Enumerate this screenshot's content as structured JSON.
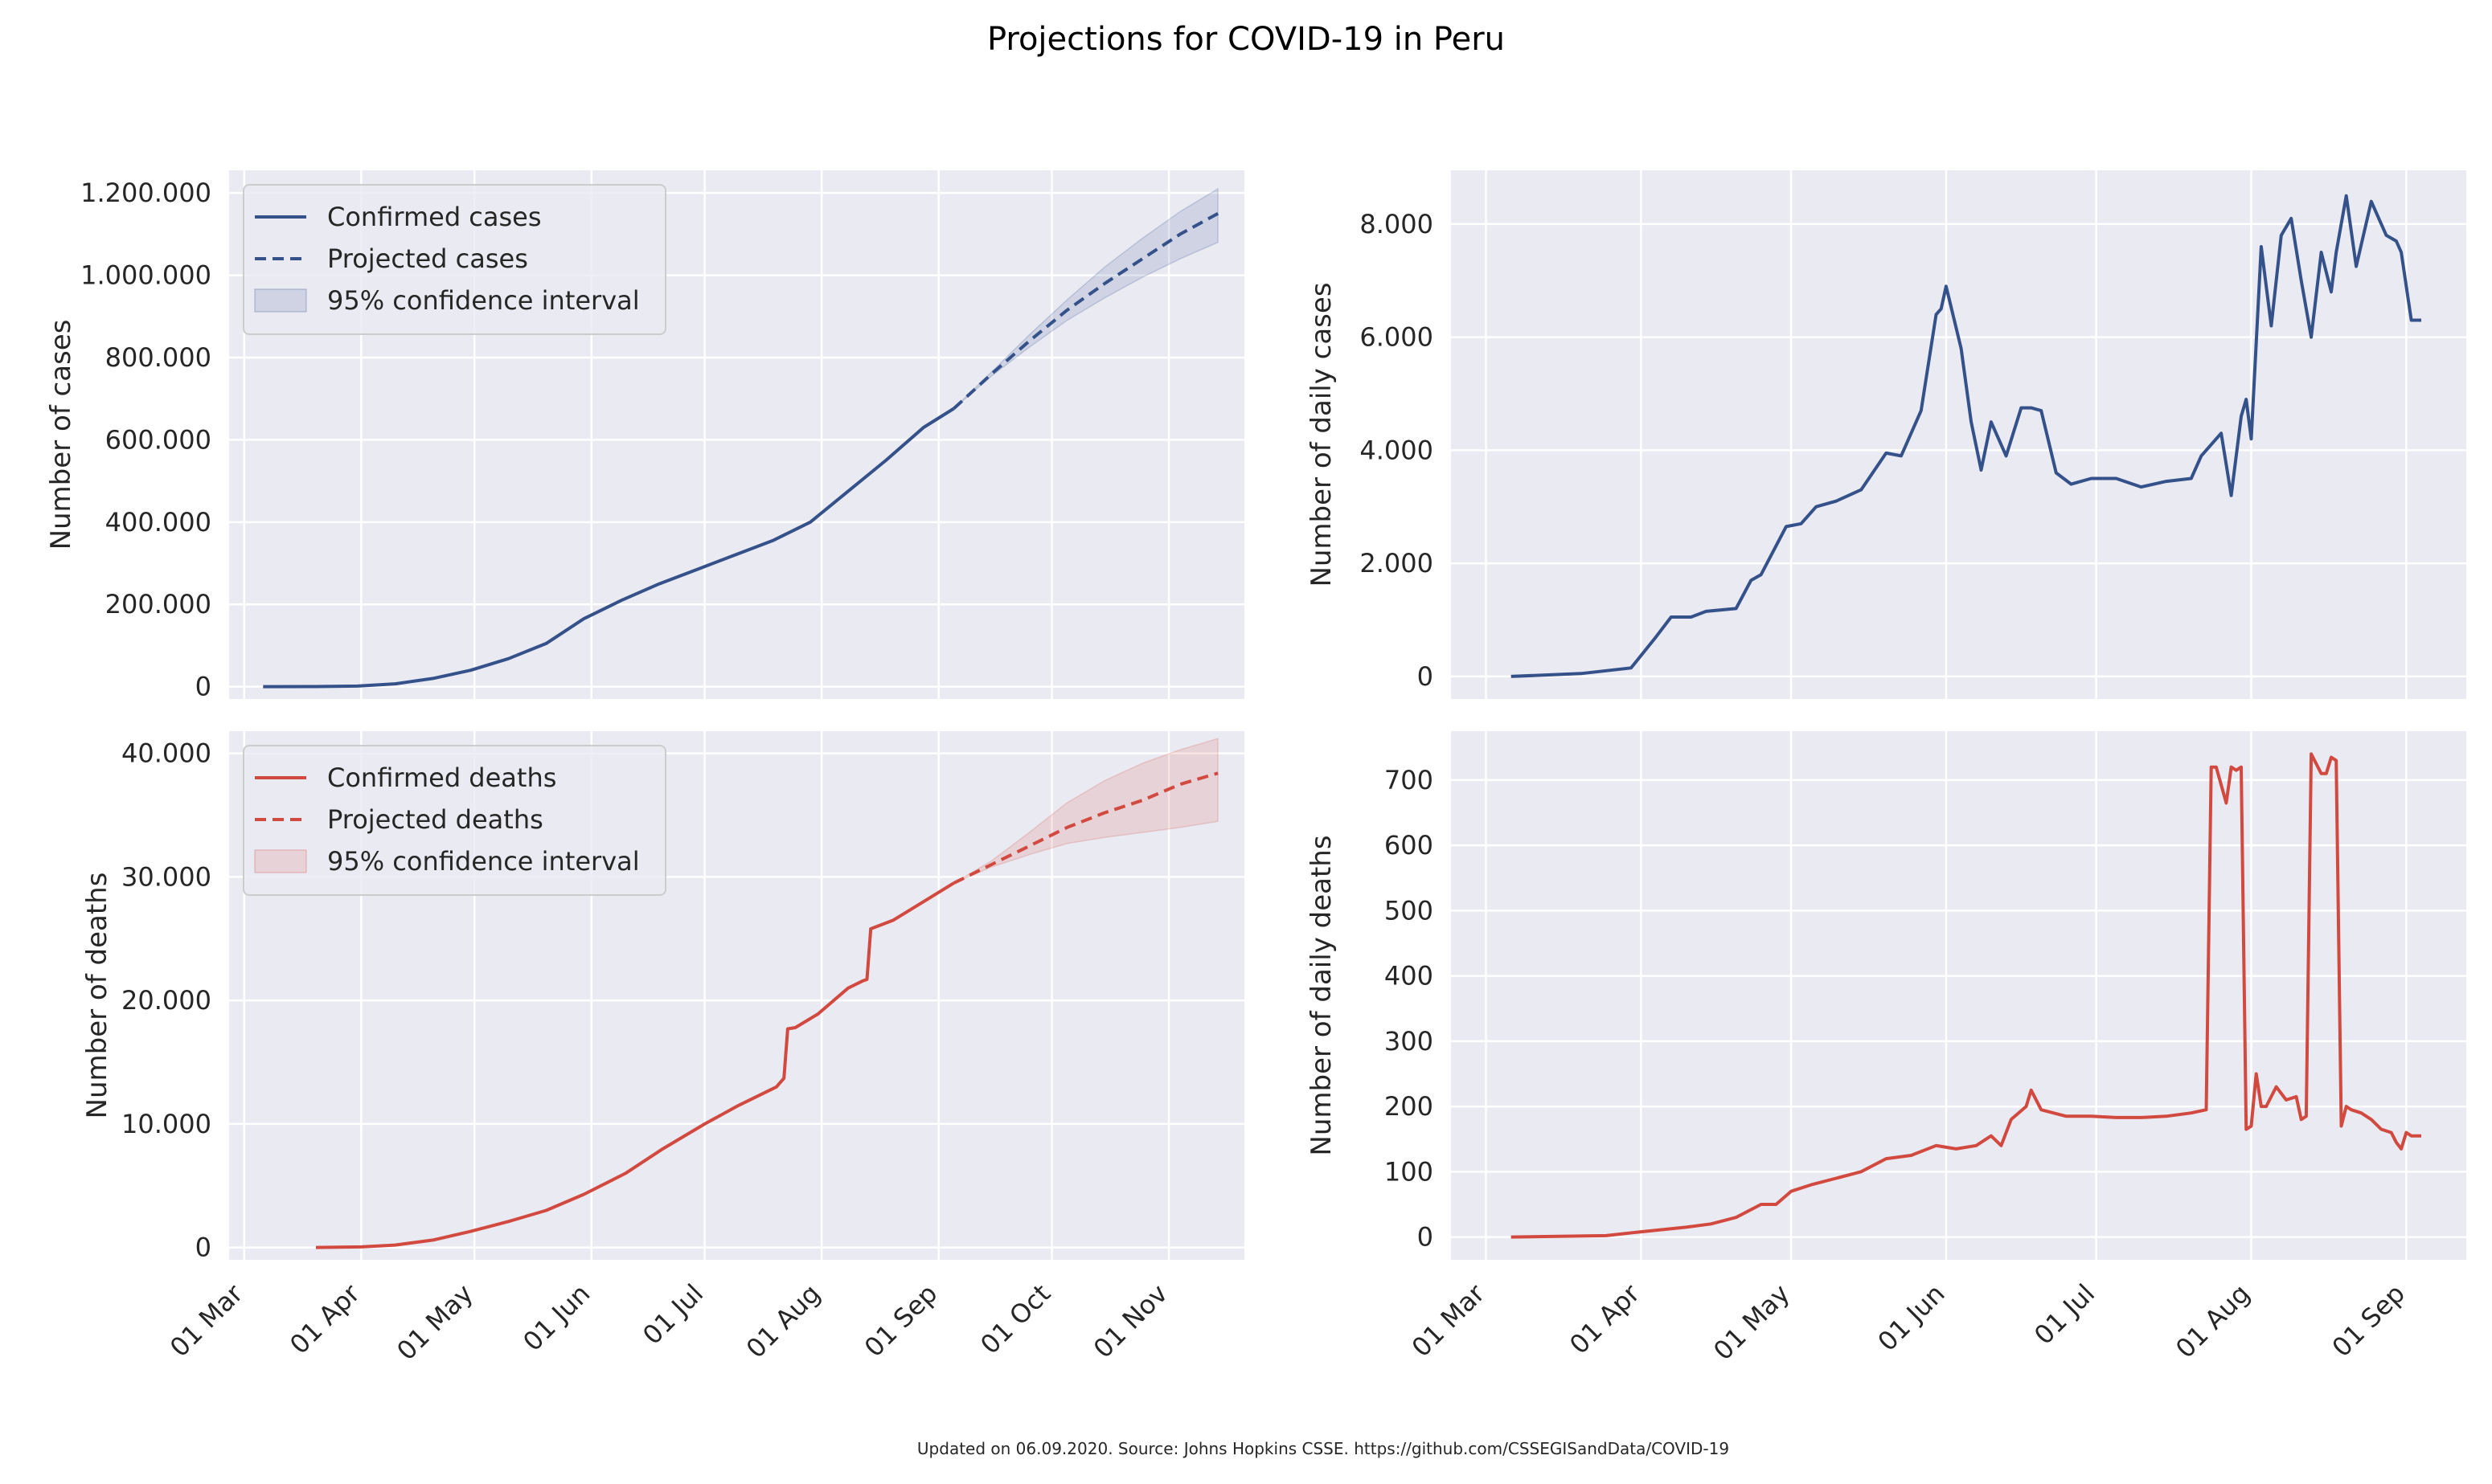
{
  "figure": {
    "title": "Projections for COVID-19 in Peru",
    "footer": "Updated on 06.09.2020. Source: Johns Hopkins CSSE. https://github.com/CSSEGISandData/COVID-19"
  },
  "colors": {
    "cases": "#34518a",
    "deaths": "#d2493f",
    "panel_bg": "#eaeaf2",
    "grid": "#ffffff"
  },
  "chart_data": [
    {
      "type": "line",
      "panel": "top-left",
      "ylabel": "Number of cases",
      "ylim": [
        -30000,
        1255000
      ],
      "xlim": [
        "2020-02-26",
        "2020-11-21"
      ],
      "yticks": [
        0,
        200000,
        400000,
        600000,
        800000,
        1000000,
        1200000
      ],
      "ytick_labels": [
        "0",
        "200.000",
        "400.000",
        "600.000",
        "800.000",
        "1.000.000",
        "1.200.000"
      ],
      "xticks": [
        "2020-03-01",
        "2020-04-01",
        "2020-05-01",
        "2020-06-01",
        "2020-07-01",
        "2020-08-01",
        "2020-09-01",
        "2020-10-01",
        "2020-11-01"
      ],
      "xtick_labels": [
        "01 Mar",
        "01 Apr",
        "01 May",
        "01 Jun",
        "01 Jul",
        "01 Aug",
        "01 Sep",
        "01 Oct",
        "01 Nov"
      ],
      "legend": {
        "position": "top-left",
        "entries": [
          "Confirmed cases",
          "Projected cases",
          "95% confidence interval"
        ]
      },
      "series": [
        {
          "name": "Confirmed cases",
          "style": "solid",
          "x": [
            "2020-03-06",
            "2020-03-20",
            "2020-03-31",
            "2020-04-10",
            "2020-04-20",
            "2020-04-30",
            "2020-05-10",
            "2020-05-20",
            "2020-05-30",
            "2020-06-09",
            "2020-06-19",
            "2020-06-29",
            "2020-07-09",
            "2020-07-19",
            "2020-07-29",
            "2020-08-08",
            "2020-08-18",
            "2020-08-28",
            "2020-09-05"
          ],
          "y": [
            0,
            200,
            1500,
            7000,
            20000,
            40000,
            68000,
            105000,
            165000,
            210000,
            250000,
            285000,
            320000,
            355000,
            400000,
            475000,
            550000,
            630000,
            676000
          ]
        },
        {
          "name": "Projected cases",
          "style": "dashed",
          "x": [
            "2020-09-05",
            "2020-09-15",
            "2020-09-25",
            "2020-10-05",
            "2020-10-15",
            "2020-10-25",
            "2020-11-04",
            "2020-11-14"
          ],
          "y": [
            676000,
            760000,
            840000,
            915000,
            980000,
            1040000,
            1100000,
            1150000
          ]
        },
        {
          "name": "95% confidence interval",
          "style": "band",
          "x": [
            "2020-09-05",
            "2020-09-15",
            "2020-09-25",
            "2020-10-05",
            "2020-10-15",
            "2020-10-25",
            "2020-11-04",
            "2020-11-14"
          ],
          "lower": [
            676000,
            755000,
            825000,
            890000,
            945000,
            995000,
            1040000,
            1080000
          ],
          "upper": [
            676000,
            765000,
            855000,
            940000,
            1020000,
            1090000,
            1155000,
            1210000
          ]
        }
      ]
    },
    {
      "type": "line",
      "panel": "top-right",
      "ylabel": "Number of daily cases",
      "ylim": [
        -400,
        8950
      ],
      "xlim": [
        "2020-02-23",
        "2020-09-13"
      ],
      "yticks": [
        0,
        2000,
        4000,
        6000,
        8000
      ],
      "ytick_labels": [
        "0",
        "2.000",
        "4.000",
        "6.000",
        "8.000"
      ],
      "xticks": [
        "2020-03-01",
        "2020-04-01",
        "2020-05-01",
        "2020-06-01",
        "2020-07-01",
        "2020-08-01",
        "2020-09-01"
      ],
      "xtick_labels": [
        "01 Mar",
        "01 Apr",
        "01 May",
        "01 Jun",
        "01 Jul",
        "01 Aug",
        "01 Sep"
      ],
      "series": [
        {
          "name": "",
          "style": "solid",
          "x": [
            "2020-03-06",
            "2020-03-20",
            "2020-03-30",
            "2020-04-04",
            "2020-04-07",
            "2020-04-11",
            "2020-04-14",
            "2020-04-20",
            "2020-04-23",
            "2020-04-25",
            "2020-04-30",
            "2020-05-03",
            "2020-05-06",
            "2020-05-10",
            "2020-05-15",
            "2020-05-20",
            "2020-05-23",
            "2020-05-27",
            "2020-05-30",
            "2020-05-31",
            "2020-06-01",
            "2020-06-04",
            "2020-06-06",
            "2020-06-08",
            "2020-06-10",
            "2020-06-13",
            "2020-06-16",
            "2020-06-18",
            "2020-06-20",
            "2020-06-23",
            "2020-06-26",
            "2020-06-30",
            "2020-07-05",
            "2020-07-10",
            "2020-07-15",
            "2020-07-20",
            "2020-07-22",
            "2020-07-24",
            "2020-07-26",
            "2020-07-28",
            "2020-07-30",
            "2020-07-31",
            "2020-08-01",
            "2020-08-03",
            "2020-08-05",
            "2020-08-07",
            "2020-08-09",
            "2020-08-11",
            "2020-08-13",
            "2020-08-15",
            "2020-08-17",
            "2020-08-18",
            "2020-08-20",
            "2020-08-22",
            "2020-08-25",
            "2020-08-28",
            "2020-08-30",
            "2020-08-31",
            "2020-09-02",
            "2020-09-04"
          ],
          "y": [
            0,
            50,
            150,
            700,
            1050,
            1050,
            1150,
            1200,
            1700,
            1800,
            2650,
            2700,
            3000,
            3100,
            3300,
            3950,
            3900,
            4700,
            6400,
            6500,
            6900,
            5800,
            4500,
            3650,
            4500,
            3900,
            4750,
            4750,
            4700,
            3600,
            3400,
            3500,
            3500,
            3350,
            3450,
            3500,
            3900,
            4100,
            4300,
            3200,
            4600,
            4900,
            4200,
            7600,
            6200,
            7800,
            8100,
            7000,
            6000,
            7500,
            6800,
            7500,
            8500,
            7250,
            8400,
            7800,
            7700,
            7500,
            6300,
            6300
          ]
        }
      ]
    },
    {
      "type": "line",
      "panel": "bottom-left",
      "ylabel": "Number of deaths",
      "ylim": [
        -1000,
        41800
      ],
      "xlim": [
        "2020-02-26",
        "2020-11-21"
      ],
      "yticks": [
        0,
        10000,
        20000,
        30000,
        40000
      ],
      "ytick_labels": [
        "0",
        "10.000",
        "20.000",
        "30.000",
        "40.000"
      ],
      "xticks": [
        "2020-03-01",
        "2020-04-01",
        "2020-05-01",
        "2020-06-01",
        "2020-07-01",
        "2020-08-01",
        "2020-09-01",
        "2020-10-01",
        "2020-11-01"
      ],
      "xtick_labels": [
        "01 Mar",
        "01 Apr",
        "01 May",
        "01 Jun",
        "01 Jul",
        "01 Aug",
        "01 Sep",
        "01 Oct",
        "01 Nov"
      ],
      "legend": {
        "position": "top-left",
        "entries": [
          "Confirmed deaths",
          "Projected deaths",
          "95% confidence interval"
        ]
      },
      "series": [
        {
          "name": "Confirmed deaths",
          "style": "solid",
          "x": [
            "2020-03-20",
            "2020-04-01",
            "2020-04-10",
            "2020-04-20",
            "2020-04-30",
            "2020-05-10",
            "2020-05-20",
            "2020-05-30",
            "2020-06-10",
            "2020-06-20",
            "2020-07-01",
            "2020-07-10",
            "2020-07-20",
            "2020-07-22",
            "2020-07-23",
            "2020-07-25",
            "2020-07-31",
            "2020-08-08",
            "2020-08-12",
            "2020-08-13",
            "2020-08-14",
            "2020-08-20",
            "2020-08-28",
            "2020-09-05"
          ],
          "y": [
            0,
            50,
            200,
            600,
            1300,
            2100,
            3000,
            4300,
            6000,
            8000,
            10000,
            11500,
            13000,
            13700,
            17700,
            17800,
            18900,
            21000,
            21600,
            21700,
            25800,
            26500,
            28000,
            29500
          ]
        },
        {
          "name": "Projected deaths",
          "style": "dashed",
          "x": [
            "2020-09-05",
            "2020-09-15",
            "2020-09-25",
            "2020-10-05",
            "2020-10-15",
            "2020-10-25",
            "2020-11-04",
            "2020-11-14"
          ],
          "y": [
            29500,
            31000,
            32500,
            34000,
            35200,
            36200,
            37500,
            38400
          ]
        },
        {
          "name": "95% confidence interval",
          "style": "band",
          "x": [
            "2020-09-05",
            "2020-09-15",
            "2020-09-25",
            "2020-10-05",
            "2020-10-15",
            "2020-10-25",
            "2020-11-04",
            "2020-11-14"
          ],
          "lower": [
            29500,
            30800,
            31800,
            32700,
            33200,
            33600,
            34000,
            34500
          ],
          "upper": [
            29500,
            31300,
            33600,
            36000,
            37800,
            39200,
            40300,
            41200
          ]
        }
      ]
    },
    {
      "type": "line",
      "panel": "bottom-right",
      "ylabel": "Number of daily deaths",
      "ylim": [
        -35,
        775
      ],
      "xlim": [
        "2020-02-23",
        "2020-09-13"
      ],
      "yticks": [
        0,
        100,
        200,
        300,
        400,
        500,
        600,
        700
      ],
      "ytick_labels": [
        "0",
        "100",
        "200",
        "300",
        "400",
        "500",
        "600",
        "700"
      ],
      "xticks": [
        "2020-03-01",
        "2020-04-01",
        "2020-05-01",
        "2020-06-01",
        "2020-07-01",
        "2020-08-01",
        "2020-09-01"
      ],
      "xtick_labels": [
        "01 Mar",
        "01 Apr",
        "01 May",
        "01 Jun",
        "01 Jul",
        "01 Aug",
        "01 Sep"
      ],
      "series": [
        {
          "name": "",
          "style": "solid",
          "x": [
            "2020-03-06",
            "2020-03-25",
            "2020-04-01",
            "2020-04-10",
            "2020-04-15",
            "2020-04-20",
            "2020-04-25",
            "2020-04-28",
            "2020-05-01",
            "2020-05-05",
            "2020-05-10",
            "2020-05-15",
            "2020-05-20",
            "2020-05-25",
            "2020-05-30",
            "2020-06-03",
            "2020-06-07",
            "2020-06-10",
            "2020-06-12",
            "2020-06-14",
            "2020-06-17",
            "2020-06-18",
            "2020-06-20",
            "2020-06-25",
            "2020-06-30",
            "2020-07-05",
            "2020-07-10",
            "2020-07-15",
            "2020-07-20",
            "2020-07-23",
            "2020-07-24",
            "2020-07-25",
            "2020-07-27",
            "2020-07-28",
            "2020-07-29",
            "2020-07-30",
            "2020-07-31",
            "2020-08-01",
            "2020-08-02",
            "2020-08-03",
            "2020-08-04",
            "2020-08-06",
            "2020-08-08",
            "2020-08-10",
            "2020-08-11",
            "2020-08-12",
            "2020-08-13",
            "2020-08-15",
            "2020-08-16",
            "2020-08-17",
            "2020-08-18",
            "2020-08-19",
            "2020-08-20",
            "2020-08-21",
            "2020-08-23",
            "2020-08-25",
            "2020-08-27",
            "2020-08-29",
            "2020-08-30",
            "2020-08-31",
            "2020-09-01",
            "2020-09-02",
            "2020-09-04"
          ],
          "y": [
            0,
            2,
            8,
            15,
            20,
            30,
            50,
            50,
            70,
            80,
            90,
            100,
            120,
            125,
            140,
            135,
            140,
            155,
            140,
            180,
            200,
            225,
            195,
            185,
            185,
            183,
            183,
            185,
            190,
            195,
            720,
            720,
            665,
            720,
            715,
            720,
            165,
            170,
            250,
            200,
            200,
            230,
            210,
            215,
            180,
            185,
            740,
            710,
            710,
            735,
            730,
            170,
            200,
            195,
            190,
            180,
            165,
            160,
            145,
            135,
            160,
            155,
            155
          ]
        }
      ]
    }
  ]
}
